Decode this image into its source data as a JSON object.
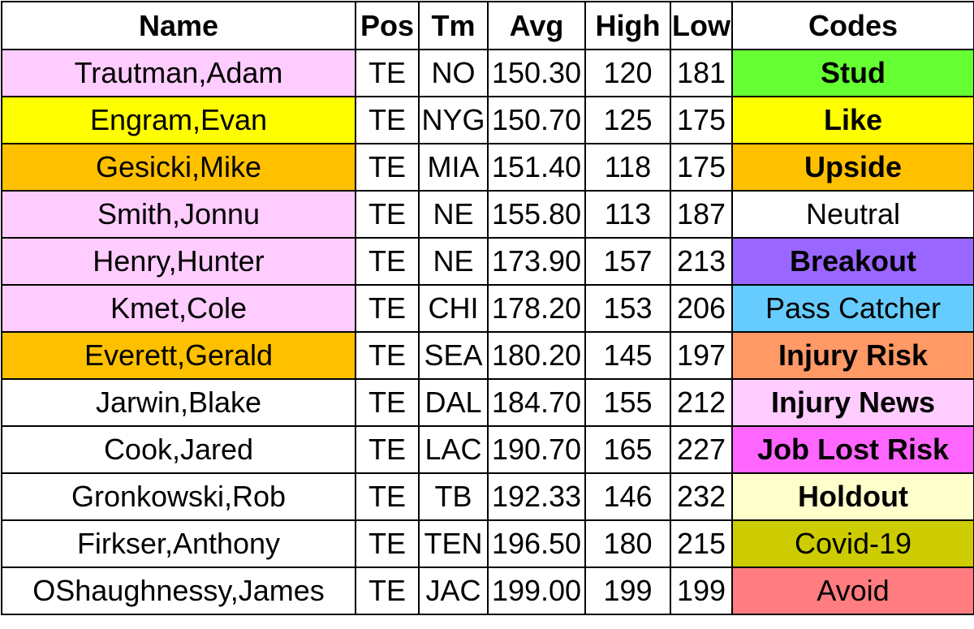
{
  "headers": {
    "name": "Name",
    "pos": "Pos",
    "tm": "Tm",
    "avg": "Avg",
    "high": "High",
    "low": "Low",
    "codes": "Codes"
  },
  "rows": [
    {
      "name": "Trautman,Adam",
      "pos": "TE",
      "tm": "NO",
      "avg": "150.30",
      "high": "120",
      "low": "181",
      "name_color": "#ffccff",
      "code": "Stud",
      "code_color": "#66ff33",
      "code_bold": true
    },
    {
      "name": "Engram,Evan",
      "pos": "TE",
      "tm": "NYG",
      "avg": "150.70",
      "high": "125",
      "low": "175",
      "name_color": "#ffff00",
      "code": "Like",
      "code_color": "#ffff00",
      "code_bold": true
    },
    {
      "name": "Gesicki,Mike",
      "pos": "TE",
      "tm": "MIA",
      "avg": "151.40",
      "high": "118",
      "low": "175",
      "name_color": "#ffc000",
      "code": "Upside",
      "code_color": "#ffc000",
      "code_bold": true
    },
    {
      "name": "Smith,Jonnu",
      "pos": "TE",
      "tm": "NE",
      "avg": "155.80",
      "high": "113",
      "low": "187",
      "name_color": "#ffccff",
      "code": "Neutral",
      "code_color": "#ffffff",
      "code_bold": false
    },
    {
      "name": "Henry,Hunter",
      "pos": "TE",
      "tm": "NE",
      "avg": "173.90",
      "high": "157",
      "low": "213",
      "name_color": "#ffccff",
      "code": "Breakout",
      "code_color": "#9966ff",
      "code_bold": true
    },
    {
      "name": "Kmet,Cole",
      "pos": "TE",
      "tm": "CHI",
      "avg": "178.20",
      "high": "153",
      "low": "206",
      "name_color": "#ffccff",
      "code": "Pass Catcher",
      "code_color": "#66ccff",
      "code_bold": false
    },
    {
      "name": "Everett,Gerald",
      "pos": "TE",
      "tm": "SEA",
      "avg": "180.20",
      "high": "145",
      "low": "197",
      "name_color": "#ffc000",
      "code": "Injury Risk",
      "code_color": "#ff9966",
      "code_bold": true
    },
    {
      "name": "Jarwin,Blake",
      "pos": "TE",
      "tm": "DAL",
      "avg": "184.70",
      "high": "155",
      "low": "212",
      "name_color": "#ffffff",
      "code": "Injury News",
      "code_color": "#ffccff",
      "code_bold": true
    },
    {
      "name": "Cook,Jared",
      "pos": "TE",
      "tm": "LAC",
      "avg": "190.70",
      "high": "165",
      "low": "227",
      "name_color": "#ffffff",
      "code": "Job Lost Risk",
      "code_color": "#ff66ff",
      "code_bold": true
    },
    {
      "name": "Gronkowski,Rob",
      "pos": "TE",
      "tm": "TB",
      "avg": "192.33",
      "high": "146",
      "low": "232",
      "name_color": "#ffffff",
      "code": "Holdout",
      "code_color": "#ffffcc",
      "code_bold": true
    },
    {
      "name": "Firkser,Anthony",
      "pos": "TE",
      "tm": "TEN",
      "avg": "196.50",
      "high": "180",
      "low": "215",
      "name_color": "#ffffff",
      "code": "Covid-19",
      "code_color": "#cccc00",
      "code_bold": false
    },
    {
      "name": "OShaughnessy,James",
      "pos": "TE",
      "tm": "JAC",
      "avg": "199.00",
      "high": "199",
      "low": "199",
      "name_color": "#ffffff",
      "code": "Avoid",
      "code_color": "#ff7c80",
      "code_bold": false
    }
  ]
}
